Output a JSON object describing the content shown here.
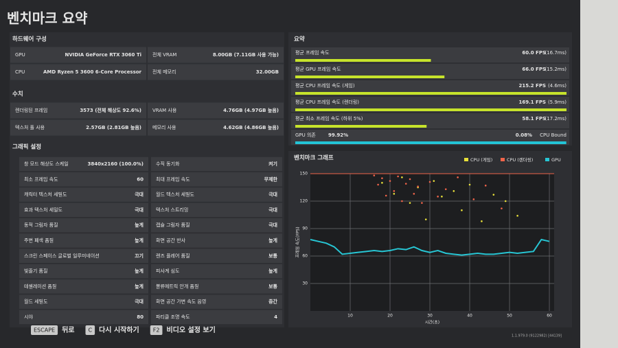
{
  "title": "벤치마크 요약",
  "hardware": {
    "heading": "하드웨어 구성",
    "rows": [
      [
        "GPU",
        "NVIDIA GeForce RTX 3060 Ti",
        "전체 VRAM",
        "8.00GB (7.11GB 사용 가능)"
      ],
      [
        "CPU",
        "AMD Ryzen 5 3600 6-Core Processor",
        "전체 메모리",
        "32.00GB"
      ]
    ]
  },
  "stats": {
    "heading": "수치",
    "rows": [
      [
        "렌더링된 프레임",
        "3573 (전체 해상도 92.6%)",
        "VRAM 사용",
        "4.76GB (4.97GB 높음)"
      ],
      [
        "텍스처 풀 사용",
        "2.57GB (2.81GB 높음)",
        "메모리 사용",
        "4.62GB (4.86GB 높음)"
      ]
    ]
  },
  "graphics": {
    "heading": "그래픽 설정",
    "rows": [
      [
        "창 모드 해상도 스케일",
        "3840x2160 (100.0%)",
        "수직 동기화",
        "켜기"
      ],
      [
        "최소 프레임 속도",
        "60",
        "최대 프레임 속도",
        "무제한"
      ],
      [
        "캐릭터 텍스처 세밀도",
        "극대",
        "월드 텍스처 세밀도",
        "극대"
      ],
      [
        "효과 텍스처 세밀도",
        "극대",
        "텍스처 스트리밍",
        "극대"
      ],
      [
        "동적 그림자 품질",
        "높게",
        "캡슐 그림자 품질",
        "극대"
      ],
      [
        "주변 폐색 품질",
        "높게",
        "화면 공간 반사",
        "높게"
      ],
      [
        "스크린 스페이스 글로벌 일루미네이션",
        "끄기",
        "렌즈 플레어 품질",
        "보통"
      ],
      [
        "빛줄기 품질",
        "높게",
        "피사계 심도",
        "높게"
      ],
      [
        "테셀레이션 품질",
        "높게",
        "볼류메트릭 안개 품질",
        "보통"
      ],
      [
        "월드 세밀도",
        "극대",
        "화면 공간 가변 속도 음영",
        "중간"
      ],
      [
        "시야",
        "80",
        "파티클 조명 속도",
        "4"
      ]
    ]
  },
  "summary": {
    "heading": "요약",
    "xlim": [
      0,
      120
    ],
    "color": "#c6e32b",
    "items": [
      {
        "label": "평균 프레임 속도",
        "value": 60.0,
        "value_label": "60.0 FPS",
        "ms": "(16.7ms)"
      },
      {
        "label": "평균 GPU 프레임 속도",
        "value": 66.0,
        "value_label": "66.0 FPS",
        "ms": "(15.2ms)"
      },
      {
        "label": "평균 CPU 프레임 속도 (게임)",
        "value": 215.2,
        "value_label": "215.2 FPS",
        "ms": "(4.6ms)"
      },
      {
        "label": "평균 CPU 프레임 속도 (렌더링)",
        "value": 169.1,
        "value_label": "169.1 FPS",
        "ms": "(5.9ms)"
      },
      {
        "label": "평균 최소 프레임 속도 (하위 5%)",
        "value": 58.1,
        "value_label": "58.1 FPS",
        "ms": "(17.2ms)"
      }
    ],
    "bound": {
      "label": "GPU 의존",
      "value": 99.92,
      "value_label": "99.92%",
      "xlim": [
        0,
        100
      ],
      "other": "0.08%",
      "other_name": "CPU Bound",
      "color": "#23c4d6"
    }
  },
  "chart_data": {
    "type": "scatter",
    "title": "벤치마크 그래프",
    "xlabel": "시간(초)",
    "ylabel": "프레임 속도(FPS)",
    "xlim": [
      0,
      61.2
    ],
    "ylim": [
      0,
      150
    ],
    "xticks": [
      10,
      20,
      30,
      40,
      50,
      60
    ],
    "yticks": [
      30,
      60,
      90,
      120,
      150
    ],
    "grid": true,
    "series": [
      {
        "name": "CPU (게임)",
        "color": "#e8e03a",
        "x": [
          18,
          21,
          23,
          25,
          27,
          29,
          31,
          33,
          36,
          38,
          40,
          43,
          46,
          49,
          52
        ],
        "values": [
          140,
          128,
          146,
          118,
          135,
          100,
          142,
          125,
          131,
          110,
          138,
          98,
          127,
          120,
          104
        ]
      },
      {
        "name": "CPU (렌더링)",
        "color": "#f0644a",
        "x": [
          16,
          17,
          18,
          19,
          20,
          21,
          22,
          23,
          24,
          25,
          26,
          27,
          28,
          30,
          32,
          34,
          37,
          41,
          44,
          48
        ],
        "values": [
          148,
          138,
          145,
          126,
          142,
          131,
          147,
          120,
          139,
          144,
          128,
          136,
          118,
          141,
          125,
          133,
          146,
          122,
          137,
          112
        ]
      },
      {
        "name": "GPU",
        "color": "#27c6d4",
        "x": [
          0,
          2,
          4,
          6,
          8,
          10,
          12,
          14,
          16,
          18,
          20,
          22,
          24,
          26,
          28,
          30,
          32,
          34,
          36,
          38,
          40,
          42,
          44,
          46,
          48,
          50,
          52,
          54,
          56,
          58,
          60
        ],
        "values": [
          78,
          76,
          74,
          70,
          62,
          63,
          64,
          65,
          66,
          65,
          66,
          68,
          67,
          70,
          66,
          64,
          66,
          63,
          62,
          61,
          62,
          63,
          62,
          62,
          63,
          64,
          63,
          64,
          65,
          78,
          76
        ]
      }
    ]
  },
  "footer": {
    "keys": [
      [
        "ESCAPE",
        "뒤로"
      ],
      [
        "C",
        "다시 시작하기"
      ],
      [
        "F2",
        "비디오 설정 보기"
      ]
    ],
    "version": "1.1.979.0 (9122982) [44139]"
  }
}
